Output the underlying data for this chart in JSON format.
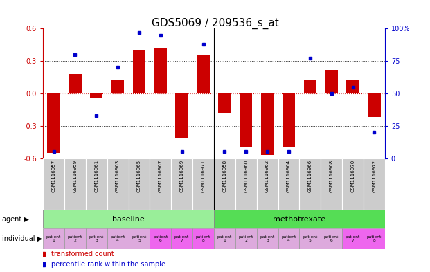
{
  "title": "GDS5069 / 209536_s_at",
  "samples": [
    "GSM1116957",
    "GSM1116959",
    "GSM1116961",
    "GSM1116963",
    "GSM1116965",
    "GSM1116967",
    "GSM1116969",
    "GSM1116971",
    "GSM1116958",
    "GSM1116960",
    "GSM1116962",
    "GSM1116964",
    "GSM1116966",
    "GSM1116968",
    "GSM1116970",
    "GSM1116972"
  ],
  "bar_values": [
    -0.55,
    0.18,
    -0.04,
    0.13,
    0.4,
    0.42,
    -0.42,
    0.35,
    -0.18,
    -0.5,
    -0.57,
    -0.5,
    0.13,
    0.22,
    0.12,
    -0.22
  ],
  "dot_values": [
    5,
    80,
    33,
    70,
    97,
    95,
    5,
    88,
    5,
    5,
    5,
    5,
    77,
    50,
    55,
    20
  ],
  "ylim": [
    -0.6,
    0.6
  ],
  "dot_ylim": [
    0,
    100
  ],
  "yticks": [
    -0.6,
    -0.3,
    0.0,
    0.3,
    0.6
  ],
  "dot_yticks": [
    0,
    25,
    50,
    75,
    100
  ],
  "bar_color": "#cc0000",
  "dot_color": "#0000cc",
  "zero_line_color": "#cc0000",
  "hline_color": "#333333",
  "agent_baseline_color": "#99ee99",
  "agent_methotrexate_color": "#55dd55",
  "gsm_bg": "#cccccc",
  "gsm_border": "#ffffff",
  "ind_colors": [
    "#ddaadd",
    "#ddaadd",
    "#ddaadd",
    "#ddaadd",
    "#ddaadd",
    "#ee66ee",
    "#ee66ee",
    "#ee66ee",
    "#ddaadd",
    "#ddaadd",
    "#ddaadd",
    "#ddaadd",
    "#ddaadd",
    "#ddaadd",
    "#ee66ee",
    "#ee66ee"
  ],
  "legend_bar_label": "transformed count",
  "legend_dot_label": "percentile rank within the sample",
  "background_color": "#ffffff",
  "plot_bg": "#ffffff",
  "tick_label_color_left": "#cc0000",
  "tick_label_color_right": "#0000cc",
  "title_fontsize": 11
}
